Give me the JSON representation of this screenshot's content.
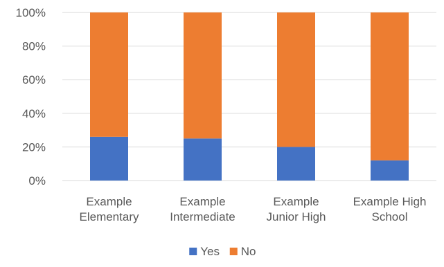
{
  "chart_data": {
    "type": "bar",
    "stacked": true,
    "percent_stacked": true,
    "categories": [
      [
        "Example",
        "Elementary"
      ],
      [
        "Example",
        "Intermediate"
      ],
      [
        "Example",
        "Junior High"
      ],
      [
        "Example High",
        "School"
      ]
    ],
    "series": [
      {
        "name": "Yes",
        "color": "#4472C4",
        "values": [
          26,
          25,
          20,
          12
        ]
      },
      {
        "name": "No",
        "color": "#ED7D31",
        "values": [
          74,
          75,
          80,
          88
        ]
      }
    ],
    "yticks": [
      "0%",
      "20%",
      "40%",
      "60%",
      "80%",
      "100%"
    ],
    "ylim": [
      0,
      100
    ],
    "grid": true,
    "legend_position": "bottom",
    "title": "",
    "xlabel": "",
    "ylabel": ""
  }
}
